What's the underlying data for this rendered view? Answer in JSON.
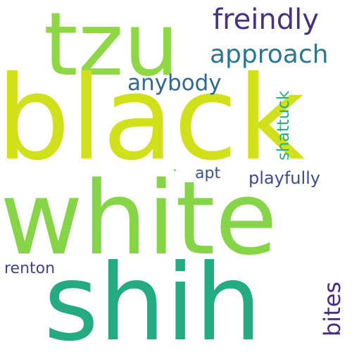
{
  "words": {
    "tzu": "tzu",
    "black": "black",
    "white": "white",
    "shih": "shih",
    "freindly": "freindly",
    "approach": "approach",
    "anybody": "anybody",
    "apt": "apt",
    "playfully": "playfully",
    "renton": "renton",
    "shattuck": "shattuck",
    "bites": "bites",
    "dot": "."
  },
  "colors": {
    "tzu": "#8fd744",
    "black": "#d0e11c",
    "white": "#86d549",
    "shih": "#25ab82",
    "freindly": "#46327e",
    "approach": "#2a788e",
    "anybody": "#31688e",
    "apt": "#3b528b",
    "playfully": "#3e4a89",
    "renton": "#414487",
    "shattuck": "#28ae80",
    "bites": "#472d7b",
    "dot": "#6ccd5a"
  }
}
